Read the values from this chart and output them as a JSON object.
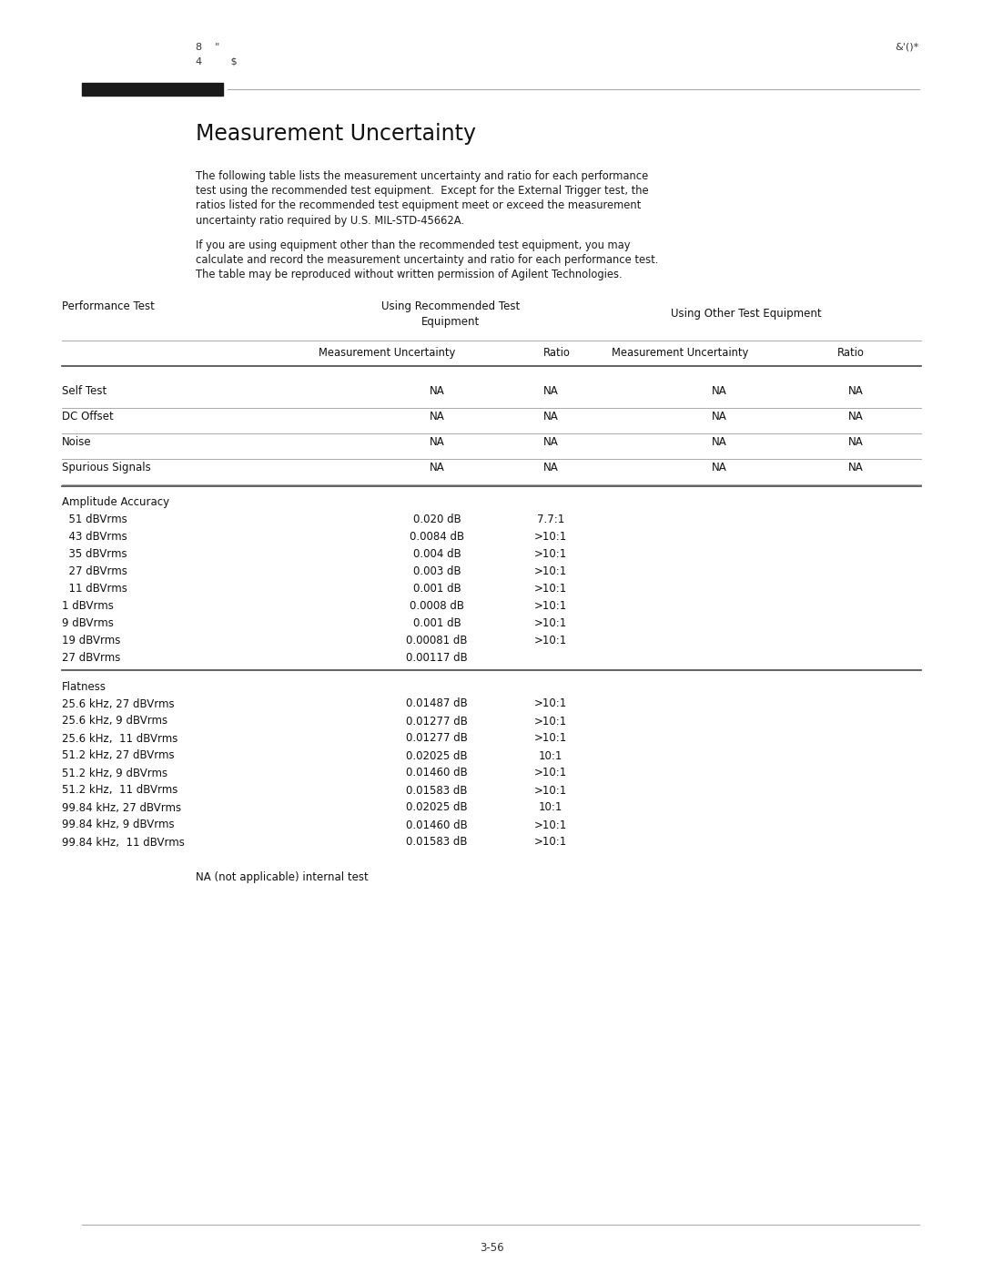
{
  "page_header_left_1": "8    \"",
  "page_header_left_2": "4         $",
  "page_header_right": "&'()*",
  "title": "Measurement Uncertainty",
  "para1_lines": [
    "The following table lists the measurement uncertainty and ratio for each performance",
    "test using the recommended test equipment.  Except for the External Trigger test, the",
    "ratios listed for the recommended test equipment meet or exceed the measurement",
    "uncertainty ratio required by U.S. MIL-STD-45662A."
  ],
  "para2_lines": [
    "If you are using equipment other than the recommended test equipment, you may",
    "calculate and record the measurement uncertainty and ratio for each performance test.",
    "The table may be reproduced without written permission of Agilent Technologies."
  ],
  "col_header_left": "Performance Test",
  "col_header_mid1": "Using Recommended Test",
  "col_header_mid2": "Equipment",
  "col_header_right": "Using Other Test Equipment",
  "subhdr1": "Measurement Uncertainty  Ratio",
  "subhdr2": "Measurement Uncertainty  Ratio",
  "rows_na": [
    [
      "Self Test",
      "NA",
      "NA",
      "NA",
      "NA"
    ],
    [
      "DC Offset",
      "NA",
      "NA",
      "NA",
      "NA"
    ],
    [
      "Noise",
      "NA",
      "NA",
      "NA",
      "NA"
    ],
    [
      "Spurious Signals",
      "NA",
      "NA",
      "NA",
      "NA"
    ]
  ],
  "amp_header": "Amplitude Accuracy",
  "amp_rows": [
    [
      "  51 dBVrms",
      "0.020 dB",
      "7.7:1"
    ],
    [
      "  43 dBVrms",
      "0.0084 dB",
      ">10:1"
    ],
    [
      "  35 dBVrms",
      "0.004 dB",
      ">10:1"
    ],
    [
      "  27 dBVrms",
      "0.003 dB",
      ">10:1"
    ],
    [
      "  11 dBVrms",
      "0.001 dB",
      ">10:1"
    ],
    [
      "1 dBVrms",
      "0.0008 dB",
      ">10:1"
    ],
    [
      "9 dBVrms",
      "0.001 dB",
      ">10:1"
    ],
    [
      "19 dBVrms",
      "0.00081 dB",
      ">10:1"
    ],
    [
      "27 dBVrms",
      "0.00117 dB",
      ""
    ]
  ],
  "flat_header": "Flatness",
  "flat_rows": [
    [
      "25.6 kHz, 27 dBVrms",
      "0.01487 dB",
      ">10:1"
    ],
    [
      "25.6 kHz, 9 dBVrms",
      "0.01277 dB",
      ">10:1"
    ],
    [
      "25.6 kHz,  11 dBVrms",
      "0.01277 dB",
      ">10:1"
    ],
    [
      "51.2 kHz, 27 dBVrms",
      "0.02025 dB",
      "10:1"
    ],
    [
      "51.2 kHz, 9 dBVrms",
      "0.01460 dB",
      ">10:1"
    ],
    [
      "51.2 kHz,  11 dBVrms",
      "0.01583 dB",
      ">10:1"
    ],
    [
      "99.84 kHz, 27 dBVrms",
      "0.02025 dB",
      "10:1"
    ],
    [
      "99.84 kHz, 9 dBVrms",
      "0.01460 dB",
      ">10:1"
    ],
    [
      "99.84 kHz,  11 dBVrms",
      "0.01583 dB",
      ">10:1"
    ]
  ],
  "footnote": "NA (not applicable) internal test",
  "page_number": "3-56",
  "bg_color": "#ffffff"
}
